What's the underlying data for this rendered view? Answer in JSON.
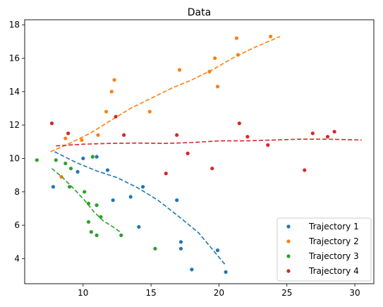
{
  "chart_data": {
    "type": "scatter",
    "title": "Data",
    "xlabel": "",
    "ylabel": "",
    "xlim": [
      5.7,
      31.4
    ],
    "ylim": [
      2.5,
      18.3
    ],
    "xticks": [
      10,
      15,
      20,
      25,
      30
    ],
    "yticks": [
      4,
      6,
      8,
      10,
      12,
      14,
      16,
      18
    ],
    "grid": false,
    "legend_position": "lower-right",
    "series": [
      {
        "name": "Trajectory 1",
        "color": "#1f77b4",
        "points": [
          [
            7.8,
            8.3
          ],
          [
            9.6,
            9.2
          ],
          [
            10.0,
            10.0
          ],
          [
            11.0,
            10.1
          ],
          [
            11.8,
            9.3
          ],
          [
            12.2,
            7.5
          ],
          [
            13.5,
            7.7
          ],
          [
            14.1,
            5.9
          ],
          [
            14.4,
            8.3
          ],
          [
            16.9,
            7.5
          ],
          [
            17.2,
            5.0
          ],
          [
            17.2,
            4.6
          ],
          [
            18.0,
            3.35
          ],
          [
            19.9,
            4.5
          ],
          [
            20.5,
            3.2
          ]
        ],
        "fit": [
          [
            7.9,
            10.4
          ],
          [
            9.5,
            9.75
          ],
          [
            11.0,
            9.25
          ],
          [
            12.5,
            8.85
          ],
          [
            14.0,
            8.25
          ],
          [
            15.5,
            7.5
          ],
          [
            17.0,
            6.55
          ],
          [
            18.5,
            5.55
          ],
          [
            20.5,
            3.6
          ]
        ]
      },
      {
        "name": "Trajectory 2",
        "color": "#ff7f0e",
        "points": [
          [
            8.4,
            8.9
          ],
          [
            8.7,
            11.2
          ],
          [
            9.9,
            11.1
          ],
          [
            11.1,
            11.4
          ],
          [
            11.7,
            12.8
          ],
          [
            12.1,
            14.0
          ],
          [
            12.3,
            14.7
          ],
          [
            14.9,
            12.8
          ],
          [
            17.1,
            15.3
          ],
          [
            19.3,
            15.2
          ],
          [
            19.7,
            16.0
          ],
          [
            19.9,
            14.3
          ],
          [
            21.3,
            17.2
          ],
          [
            21.4,
            16.2
          ],
          [
            23.8,
            17.3
          ]
        ],
        "fit": [
          [
            7.6,
            10.4
          ],
          [
            9.0,
            10.9
          ],
          [
            10.5,
            11.5
          ],
          [
            12.0,
            12.25
          ],
          [
            13.5,
            13.0
          ],
          [
            15.0,
            13.6
          ],
          [
            16.5,
            14.2
          ],
          [
            18.0,
            14.7
          ],
          [
            19.5,
            15.3
          ],
          [
            21.0,
            16.0
          ],
          [
            22.5,
            16.6
          ],
          [
            24.5,
            17.3
          ]
        ]
      },
      {
        "name": "Trajectory 3",
        "color": "#2ca02c",
        "points": [
          [
            6.6,
            9.9
          ],
          [
            8.0,
            9.9
          ],
          [
            8.7,
            9.7
          ],
          [
            9.0,
            8.3
          ],
          [
            9.1,
            9.4
          ],
          [
            10.1,
            8.0
          ],
          [
            10.4,
            6.2
          ],
          [
            10.4,
            7.3
          ],
          [
            10.6,
            5.6
          ],
          [
            10.7,
            10.1
          ],
          [
            11.0,
            7.2
          ],
          [
            11.0,
            5.4
          ],
          [
            11.3,
            6.5
          ],
          [
            12.8,
            5.4
          ],
          [
            15.3,
            4.6
          ]
        ],
        "fit": [
          [
            7.7,
            9.4
          ],
          [
            8.5,
            8.85
          ],
          [
            9.3,
            8.2
          ],
          [
            10.1,
            7.5
          ],
          [
            10.8,
            6.8
          ],
          [
            11.5,
            6.25
          ],
          [
            12.2,
            5.9
          ],
          [
            12.8,
            5.55
          ]
        ]
      },
      {
        "name": "Trajectory 4",
        "color": "#d62728",
        "points": [
          [
            7.7,
            12.1
          ],
          [
            8.9,
            11.5
          ],
          [
            12.4,
            12.5
          ],
          [
            13.0,
            11.4
          ],
          [
            16.1,
            9.1
          ],
          [
            16.9,
            11.4
          ],
          [
            17.7,
            10.3
          ],
          [
            19.5,
            9.4
          ],
          [
            21.5,
            12.1
          ],
          [
            22.1,
            11.3
          ],
          [
            23.6,
            10.8
          ],
          [
            26.3,
            9.3
          ],
          [
            26.9,
            11.5
          ],
          [
            28.0,
            11.3
          ],
          [
            28.5,
            11.6
          ]
        ],
        "fit": [
          [
            8.0,
            10.75
          ],
          [
            10.0,
            10.85
          ],
          [
            12.0,
            10.9
          ],
          [
            14.0,
            10.92
          ],
          [
            16.0,
            10.9
          ],
          [
            18.0,
            10.95
          ],
          [
            20.0,
            11.05
          ],
          [
            22.0,
            11.05
          ],
          [
            24.0,
            11.1
          ],
          [
            26.0,
            11.15
          ],
          [
            28.0,
            11.15
          ],
          [
            30.5,
            11.1
          ]
        ]
      }
    ]
  }
}
